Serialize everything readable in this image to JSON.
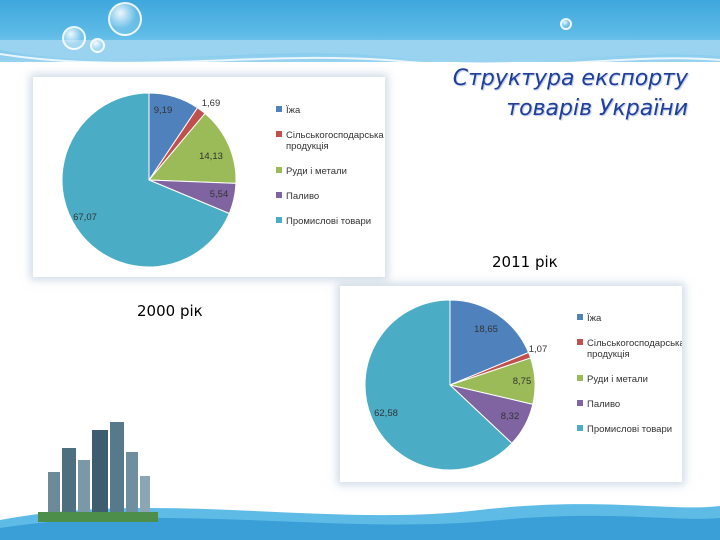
{
  "title_line1": "Структура експорту",
  "title_line2": "товарів України",
  "chart_data": [
    {
      "type": "pie",
      "label": "2000 рік",
      "series": [
        {
          "name": "Їжа",
          "value": 9.19,
          "label": "9,19",
          "color": "#4f81bd"
        },
        {
          "name": "Сільськогосподарська продукція",
          "value": 1.69,
          "label": "1,69",
          "color": "#c0504d"
        },
        {
          "name": "Руди і метали",
          "value": 14.13,
          "label": "14,13",
          "color": "#9bbb59"
        },
        {
          "name": "Паливо",
          "value": 5.54,
          "label": "5,54",
          "color": "#8064a2"
        },
        {
          "name": "Промислові товари",
          "value": 67.07,
          "label": "67,07",
          "color": "#4bacc6"
        }
      ],
      "legend": "right"
    },
    {
      "type": "pie",
      "label": "2011 рік",
      "series": [
        {
          "name": "Їжа",
          "value": 18.65,
          "label": "18,65",
          "color": "#4f81bd"
        },
        {
          "name": "Сільськогосподарська продукція",
          "value": 1.07,
          "label": "1,07",
          "color": "#c0504d"
        },
        {
          "name": "Руди і метали",
          "value": 8.75,
          "label": "8,75",
          "color": "#9bbb59"
        },
        {
          "name": "Паливо",
          "value": 8.32,
          "label": "8,32",
          "color": "#8064a2"
        },
        {
          "name": "Промислові товари",
          "value": 62.58,
          "label": "62,58",
          "color": "#4bacc6"
        }
      ],
      "legend": "right"
    }
  ]
}
